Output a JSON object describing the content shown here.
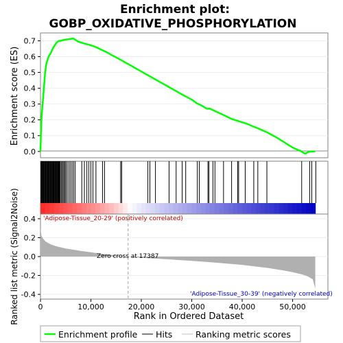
{
  "chart_data": {
    "type": "line",
    "title_lines": [
      "Enrichment plot:",
      "GOBP_OXIDATIVE_PHOSPHORYLATION"
    ],
    "xlabel": "Rank in Ordered Dataset",
    "es_panel": {
      "ylabel": "Enrichment score (ES)",
      "ylim": [
        -0.04,
        0.75
      ],
      "yticks": [
        0.0,
        0.1,
        0.2,
        0.3,
        0.4,
        0.5,
        0.6,
        0.7
      ],
      "ytick_labels": [
        "0.0",
        "0.1",
        "0.2",
        "0.3",
        "0.4",
        "0.5",
        "0.6",
        "0.7"
      ],
      "series": [
        {
          "name": "Enrichment profile",
          "color": "#00ff00",
          "x": [
            0,
            100,
            200,
            300,
            400,
            500,
            600,
            700,
            800,
            900,
            1000,
            1200,
            1400,
            1600,
            1800,
            2000,
            2200,
            2500,
            2800,
            3100,
            3400,
            3700,
            4000,
            4500,
            5000,
            5500,
            6000,
            6500,
            7000,
            7500,
            8000,
            9000,
            10000,
            11000,
            12000,
            13000,
            14000,
            15000,
            16000,
            17000,
            18000,
            19000,
            20000,
            21000,
            22000,
            23000,
            24000,
            25000,
            26000,
            27000,
            28000,
            29000,
            30000,
            31000,
            32000,
            32700,
            33000,
            33500,
            34000,
            35000,
            36000,
            37000,
            38000,
            39000,
            40000,
            41000,
            42000,
            43000,
            44000,
            45000,
            46000,
            47000,
            48000,
            49000,
            50000,
            51000,
            51500,
            52000,
            52500,
            53000,
            53500,
            54000,
            54500
          ],
          "y": [
            0.0,
            0.12,
            0.21,
            0.25,
            0.29,
            0.33,
            0.37,
            0.41,
            0.45,
            0.49,
            0.52,
            0.56,
            0.58,
            0.6,
            0.61,
            0.62,
            0.635,
            0.655,
            0.67,
            0.685,
            0.695,
            0.7,
            0.7,
            0.705,
            0.708,
            0.71,
            0.712,
            0.715,
            0.705,
            0.695,
            0.69,
            0.68,
            0.672,
            0.66,
            0.645,
            0.63,
            0.612,
            0.595,
            0.578,
            0.56,
            0.542,
            0.524,
            0.506,
            0.488,
            0.47,
            0.452,
            0.434,
            0.416,
            0.398,
            0.38,
            0.362,
            0.345,
            0.328,
            0.305,
            0.29,
            0.275,
            0.27,
            0.272,
            0.265,
            0.25,
            0.235,
            0.22,
            0.205,
            0.195,
            0.185,
            0.175,
            0.16,
            0.148,
            0.134,
            0.12,
            0.103,
            0.085,
            0.065,
            0.045,
            0.025,
            0.01,
            0.005,
            -0.005,
            -0.015,
            -0.005,
            0.0,
            0.0,
            0.0
          ]
        }
      ]
    },
    "hits_panel": {
      "series_name": "Hits",
      "hit_positions": [
        100,
        200,
        300,
        420,
        540,
        660,
        780,
        900,
        1020,
        1140,
        1260,
        1380,
        1500,
        1620,
        1740,
        1860,
        1980,
        2100,
        2220,
        2340,
        2460,
        2580,
        2700,
        2820,
        2940,
        3060,
        3180,
        3300,
        3420,
        3540,
        3660,
        3780,
        3900,
        4100,
        4300,
        4500,
        4700,
        4900,
        5100,
        5400,
        5700,
        6000,
        6300,
        6600,
        6900,
        8200,
        8700,
        9200,
        9600,
        10000,
        10400,
        11000,
        12300,
        12700,
        15900,
        16100,
        21300,
        21700,
        22800,
        25500,
        26900,
        28100,
        28800,
        31100,
        31500,
        33200,
        33400,
        34200,
        34600,
        36300,
        37900,
        39100,
        39300,
        40600,
        42300,
        43100,
        44900,
        51800,
        53400,
        53800,
        54600
      ]
    },
    "ranking_bar": {
      "colors": [
        "#ff0000",
        "#ffffff",
        "#0000ff"
      ]
    },
    "metric_panel": {
      "ylabel": "Ranked list metric (Signal2Noise)",
      "ylim": [
        -0.45,
        0.45
      ],
      "yticks": [
        -0.4,
        -0.2,
        0.0,
        0.2,
        0.4
      ],
      "ytick_labels": [
        "-0.4",
        "-0.2",
        "0.0",
        "0.2",
        "0.4"
      ],
      "fill_color": "#b0b0b0",
      "x": [
        0,
        200,
        500,
        1000,
        2000,
        3000,
        5000,
        8000,
        10000,
        12000,
        14000,
        16000,
        17387,
        20000,
        25000,
        30000,
        35000,
        40000,
        45000,
        48000,
        50000,
        52000,
        53000,
        54000,
        54500
      ],
      "y": [
        0.3,
        0.22,
        0.19,
        0.16,
        0.13,
        0.11,
        0.085,
        0.06,
        0.045,
        0.03,
        0.018,
        0.008,
        0.0,
        -0.012,
        -0.028,
        -0.045,
        -0.065,
        -0.088,
        -0.12,
        -0.145,
        -0.165,
        -0.19,
        -0.21,
        -0.24,
        -0.34
      ],
      "positive_label": "'Adipose-Tissue_20-29' (positively correlated)",
      "negative_label": "'Adipose-Tissue_30-39' (negatively correlated)",
      "zero_cross_label": "Zero cross at 17387",
      "zero_cross": 17387,
      "positive_color": "#cc0000",
      "negative_color": "#0000cc"
    },
    "xaxis": {
      "xlim": [
        0,
        57000
      ],
      "ticks": [
        0,
        10000,
        20000,
        30000,
        40000,
        50000
      ],
      "tick_labels": [
        "0",
        "10,000",
        "20,000",
        "30,000",
        "40,000",
        "50,000"
      ]
    },
    "legend": {
      "placement": "bottom",
      "items": [
        {
          "label": "Enrichment profile",
          "color": "#00ff00"
        },
        {
          "label": "Hits",
          "color": "#000000"
        },
        {
          "label": "Ranking metric scores",
          "color": "#c0c0c0"
        }
      ]
    }
  }
}
